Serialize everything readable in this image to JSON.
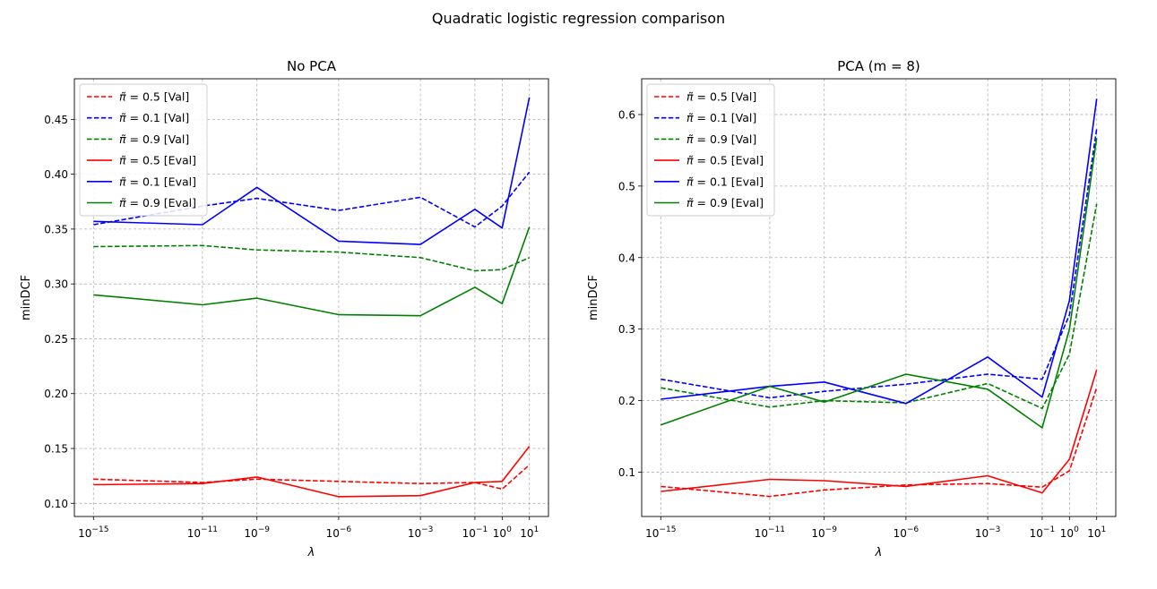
{
  "figure": {
    "suptitle": "Quadratic logistic regression comparison"
  },
  "chart_data": [
    {
      "type": "line",
      "title": "No PCA",
      "xlabel": "λ",
      "ylabel": "minDCF",
      "x": [
        -15,
        -11,
        -9,
        -6,
        -3,
        -1,
        0,
        1
      ],
      "x_scale": "log10",
      "x_tick_labels": [
        {
          "base": "10",
          "exp": "−15"
        },
        {
          "base": "10",
          "exp": "−11"
        },
        {
          "base": "10",
          "exp": "−9"
        },
        {
          "base": "10",
          "exp": "−6"
        },
        {
          "base": "10",
          "exp": "−3"
        },
        {
          "base": "10",
          "exp": "−1"
        },
        {
          "base": "10",
          "exp": "0"
        },
        {
          "base": "10",
          "exp": "1"
        }
      ],
      "yticks": [
        0.1,
        0.15,
        0.2,
        0.25,
        0.3,
        0.35,
        0.4,
        0.45
      ],
      "ytick_labels": [
        "0.10",
        "0.15",
        "0.20",
        "0.25",
        "0.30",
        "0.35",
        "0.40",
        "0.45"
      ],
      "ylim": [
        0.088,
        0.487
      ],
      "xlim": [
        -15.7,
        1.7
      ],
      "grid": true,
      "legend_position": "top-left",
      "series": [
        {
          "name": "[Val]",
          "pi": "0.5",
          "color": "#ff0000",
          "dash": true,
          "values": [
            0.122,
            0.119,
            0.122,
            0.12,
            0.118,
            0.119,
            0.113,
            0.135
          ]
        },
        {
          "name": "[Val]",
          "pi": "0.1",
          "color": "#0000ff",
          "dash": true,
          "values": [
            0.354,
            0.371,
            0.378,
            0.367,
            0.379,
            0.352,
            0.371,
            0.402
          ]
        },
        {
          "name": "[Val]",
          "pi": "0.9",
          "color": "#008000",
          "dash": true,
          "values": [
            0.334,
            0.335,
            0.331,
            0.329,
            0.324,
            0.312,
            0.313,
            0.324
          ]
        },
        {
          "name": "[Eval]",
          "pi": "0.5",
          "color": "#ff0000",
          "dash": false,
          "values": [
            0.117,
            0.118,
            0.124,
            0.106,
            0.107,
            0.119,
            0.12,
            0.152
          ]
        },
        {
          "name": "[Eval]",
          "pi": "0.1",
          "color": "#0000ff",
          "dash": false,
          "values": [
            0.357,
            0.354,
            0.388,
            0.339,
            0.336,
            0.368,
            0.351,
            0.47
          ]
        },
        {
          "name": "[Eval]",
          "pi": "0.9",
          "color": "#008000",
          "dash": false,
          "values": [
            0.29,
            0.281,
            0.287,
            0.272,
            0.271,
            0.297,
            0.282,
            0.352
          ]
        }
      ]
    },
    {
      "type": "line",
      "title": "PCA (m = 8)",
      "xlabel": "λ",
      "ylabel": "minDCF",
      "x": [
        -15,
        -11,
        -9,
        -6,
        -3,
        -1,
        0,
        1
      ],
      "x_scale": "log10",
      "x_tick_labels": [
        {
          "base": "10",
          "exp": "−15"
        },
        {
          "base": "10",
          "exp": "−11"
        },
        {
          "base": "10",
          "exp": "−9"
        },
        {
          "base": "10",
          "exp": "−6"
        },
        {
          "base": "10",
          "exp": "−3"
        },
        {
          "base": "10",
          "exp": "−1"
        },
        {
          "base": "10",
          "exp": "0"
        },
        {
          "base": "10",
          "exp": "1"
        }
      ],
      "yticks": [
        0.1,
        0.2,
        0.3,
        0.4,
        0.5,
        0.6
      ],
      "ytick_labels": [
        "0.1",
        "0.2",
        "0.3",
        "0.4",
        "0.5",
        "0.6"
      ],
      "ylim": [
        0.038,
        0.65
      ],
      "xlim": [
        -15.7,
        1.7
      ],
      "grid": true,
      "legend_position": "top-left",
      "series": [
        {
          "name": "[Val]",
          "pi": "0.5",
          "color": "#ff0000",
          "dash": true,
          "values": [
            0.08,
            0.066,
            0.075,
            0.082,
            0.084,
            0.079,
            0.102,
            0.218
          ]
        },
        {
          "name": "[Val]",
          "pi": "0.1",
          "color": "#0000ff",
          "dash": true,
          "values": [
            0.23,
            0.204,
            0.213,
            0.223,
            0.237,
            0.23,
            0.32,
            0.58
          ]
        },
        {
          "name": "[Val]",
          "pi": "0.9",
          "color": "#008000",
          "dash": true,
          "values": [
            0.218,
            0.191,
            0.2,
            0.197,
            0.224,
            0.189,
            0.265,
            0.475
          ]
        },
        {
          "name": "[Eval]",
          "pi": "0.5",
          "color": "#ff0000",
          "dash": false,
          "values": [
            0.073,
            0.09,
            0.088,
            0.08,
            0.095,
            0.071,
            0.118,
            0.243
          ]
        },
        {
          "name": "[Eval]",
          "pi": "0.1",
          "color": "#0000ff",
          "dash": false,
          "values": [
            0.202,
            0.22,
            0.226,
            0.196,
            0.261,
            0.205,
            0.34,
            0.622
          ]
        },
        {
          "name": "[Eval]",
          "pi": "0.9",
          "color": "#008000",
          "dash": false,
          "values": [
            0.166,
            0.22,
            0.198,
            0.237,
            0.216,
            0.162,
            0.3,
            0.567
          ]
        }
      ]
    }
  ]
}
